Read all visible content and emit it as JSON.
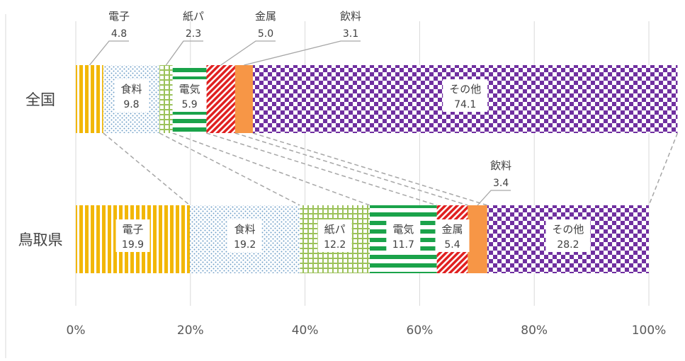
{
  "chart_data": {
    "type": "bar",
    "orientation": "horizontal",
    "stacked": "percent",
    "categories": [
      "全国",
      "鳥取県"
    ],
    "series": [
      {
        "name": "電子",
        "values": [
          4.8,
          19.9
        ],
        "color": "#f2b705",
        "pattern": "vertical-stripes"
      },
      {
        "name": "食料",
        "values": [
          9.8,
          19.2
        ],
        "color": "#6fa0c8",
        "pattern": "dots"
      },
      {
        "name": "紙パ",
        "values": [
          2.3,
          12.2
        ],
        "color": "#9cc25a",
        "pattern": "grid"
      },
      {
        "name": "電気",
        "values": [
          5.9,
          11.7
        ],
        "color": "#1aa34a",
        "pattern": "horizontal-stripes"
      },
      {
        "name": "金属",
        "values": [
          5.0,
          5.4
        ],
        "color": "#e02020",
        "pattern": "diagonal-stripes"
      },
      {
        "name": "飲料",
        "values": [
          3.1,
          3.4
        ],
        "color": "#f79646",
        "pattern": "solid"
      },
      {
        "name": "その他",
        "values": [
          74.1,
          28.2
        ],
        "color": "#7030a0",
        "pattern": "checkerboard"
      }
    ],
    "xlim": [
      0,
      100
    ],
    "x_ticks": [
      "0%",
      "20%",
      "40%",
      "60%",
      "80%",
      "100%"
    ],
    "grid": true,
    "legend": "none",
    "series_lines": true
  }
}
